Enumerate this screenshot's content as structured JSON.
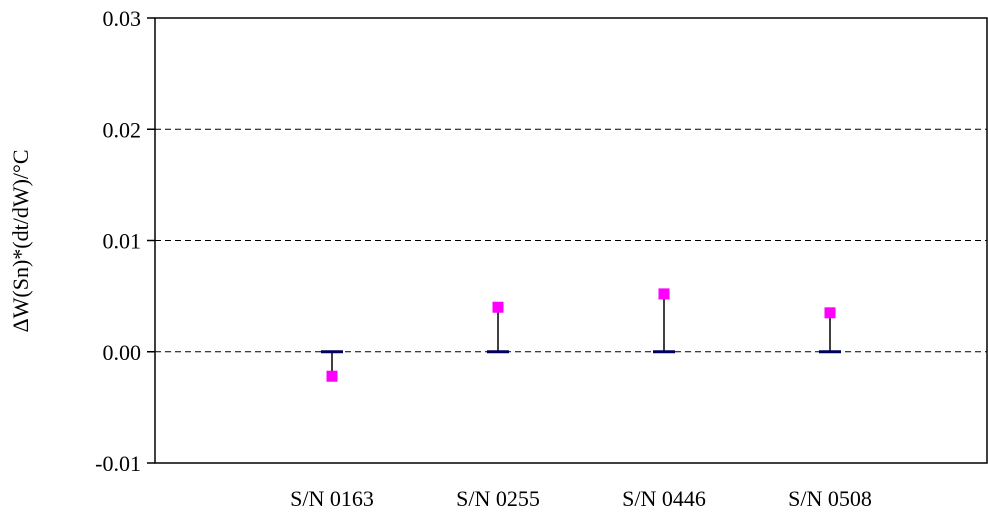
{
  "chart_data": {
    "type": "scatter",
    "title": "",
    "xlabel": "",
    "ylabel": "ΔW(Sn)*(dt/dW)/°C",
    "categories": [
      "S/N 0163",
      "S/N 0255",
      "S/N 0446",
      "S/N 0508"
    ],
    "y_ticks": [
      "0.03",
      "0.02",
      "0.01",
      "0.00",
      "-0.01"
    ],
    "y_tick_values": [
      0.03,
      0.02,
      0.01,
      0.0,
      -0.01
    ],
    "ylim": [
      -0.01,
      0.03
    ],
    "grid": "horizontal dashed",
    "legend": "none",
    "series": [
      {
        "values": [
          -0.0022,
          0.004,
          0.0052,
          0.0035
        ],
        "marker": "square",
        "color": "#ff00ff"
      }
    ],
    "reference_value": 0.0,
    "reference_color": "#00005e"
  }
}
